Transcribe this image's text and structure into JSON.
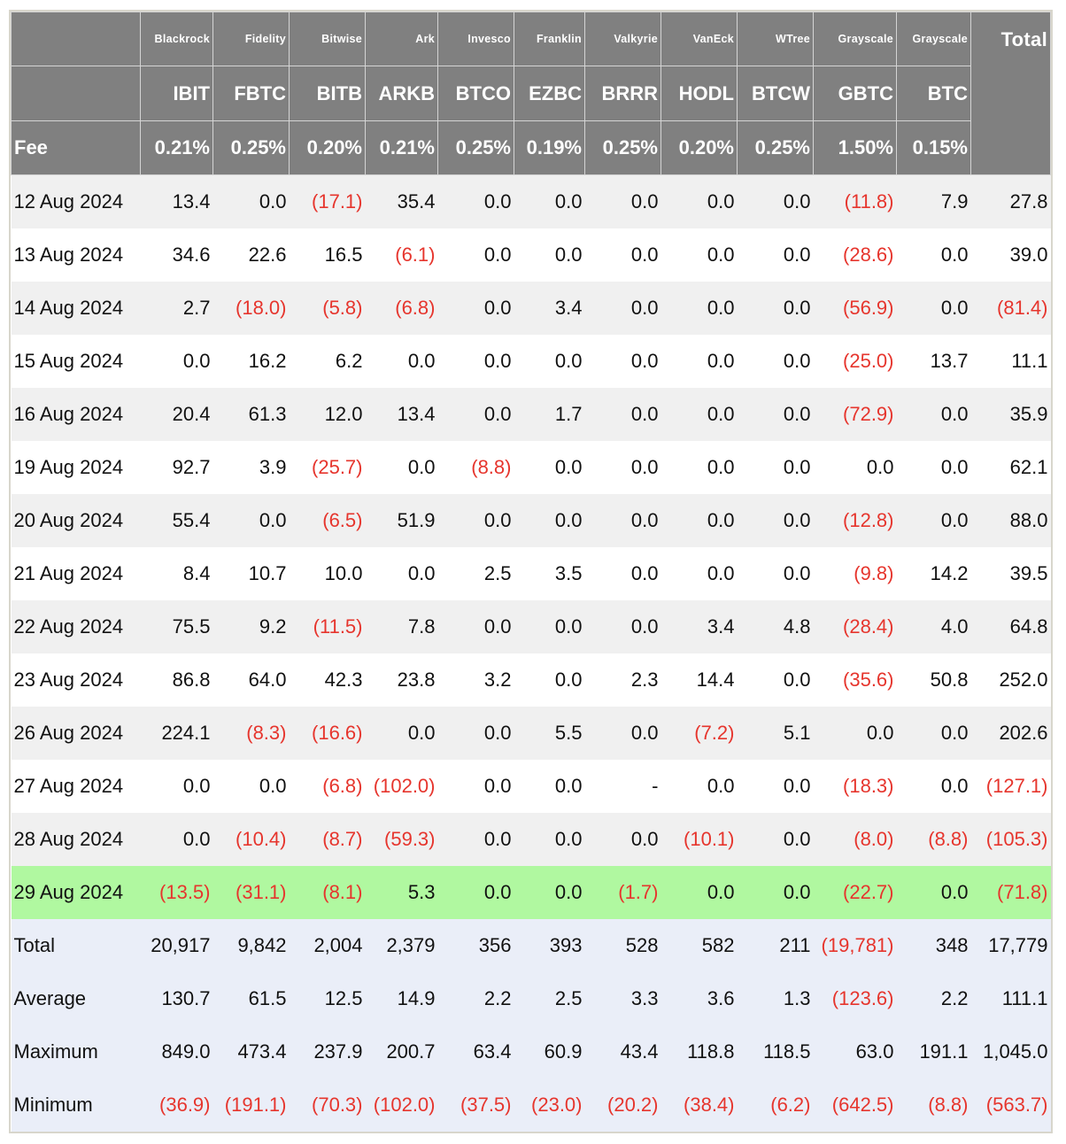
{
  "colors": {
    "header_bg": "#808080",
    "negative": "#e6352d",
    "highlight": "#b0f8a0",
    "summary_bg": "#eaeef8",
    "alt_row": "#f0f0f0"
  },
  "header": {
    "issuers": [
      "Blackrock",
      "Fidelity",
      "Bitwise",
      "Ark",
      "Invesco",
      "Franklin",
      "Valkyrie",
      "VanEck",
      "WTree",
      "Grayscale",
      "Grayscale"
    ],
    "total_label": "Total",
    "tickers": [
      "IBIT",
      "FBTC",
      "BITB",
      "ARKB",
      "BTCO",
      "EZBC",
      "BRRR",
      "HODL",
      "BTCW",
      "GBTC",
      "BTC"
    ],
    "fee_label": "Fee",
    "fees": [
      "0.21%",
      "0.25%",
      "0.20%",
      "0.21%",
      "0.25%",
      "0.19%",
      "0.25%",
      "0.20%",
      "0.25%",
      "1.50%",
      "0.15%"
    ]
  },
  "rows": [
    {
      "date": "12 Aug 2024",
      "values": [
        "13.4",
        "0.0",
        "(17.1)",
        "35.4",
        "0.0",
        "0.0",
        "0.0",
        "0.0",
        "0.0",
        "(11.8)",
        "7.9",
        "27.8"
      ]
    },
    {
      "date": "13 Aug 2024",
      "values": [
        "34.6",
        "22.6",
        "16.5",
        "(6.1)",
        "0.0",
        "0.0",
        "0.0",
        "0.0",
        "0.0",
        "(28.6)",
        "0.0",
        "39.0"
      ]
    },
    {
      "date": "14 Aug 2024",
      "values": [
        "2.7",
        "(18.0)",
        "(5.8)",
        "(6.8)",
        "0.0",
        "3.4",
        "0.0",
        "0.0",
        "0.0",
        "(56.9)",
        "0.0",
        "(81.4)"
      ]
    },
    {
      "date": "15 Aug 2024",
      "values": [
        "0.0",
        "16.2",
        "6.2",
        "0.0",
        "0.0",
        "0.0",
        "0.0",
        "0.0",
        "0.0",
        "(25.0)",
        "13.7",
        "11.1"
      ]
    },
    {
      "date": "16 Aug 2024",
      "values": [
        "20.4",
        "61.3",
        "12.0",
        "13.4",
        "0.0",
        "1.7",
        "0.0",
        "0.0",
        "0.0",
        "(72.9)",
        "0.0",
        "35.9"
      ]
    },
    {
      "date": "19 Aug 2024",
      "values": [
        "92.7",
        "3.9",
        "(25.7)",
        "0.0",
        "(8.8)",
        "0.0",
        "0.0",
        "0.0",
        "0.0",
        "0.0",
        "0.0",
        "62.1"
      ]
    },
    {
      "date": "20 Aug 2024",
      "values": [
        "55.4",
        "0.0",
        "(6.5)",
        "51.9",
        "0.0",
        "0.0",
        "0.0",
        "0.0",
        "0.0",
        "(12.8)",
        "0.0",
        "88.0"
      ]
    },
    {
      "date": "21 Aug 2024",
      "values": [
        "8.4",
        "10.7",
        "10.0",
        "0.0",
        "2.5",
        "3.5",
        "0.0",
        "0.0",
        "0.0",
        "(9.8)",
        "14.2",
        "39.5"
      ]
    },
    {
      "date": "22 Aug 2024",
      "values": [
        "75.5",
        "9.2",
        "(11.5)",
        "7.8",
        "0.0",
        "0.0",
        "0.0",
        "3.4",
        "4.8",
        "(28.4)",
        "4.0",
        "64.8"
      ]
    },
    {
      "date": "23 Aug 2024",
      "values": [
        "86.8",
        "64.0",
        "42.3",
        "23.8",
        "3.2",
        "0.0",
        "2.3",
        "14.4",
        "0.0",
        "(35.6)",
        "50.8",
        "252.0"
      ]
    },
    {
      "date": "26 Aug 2024",
      "values": [
        "224.1",
        "(8.3)",
        "(16.6)",
        "0.0",
        "0.0",
        "5.5",
        "0.0",
        "(7.2)",
        "5.1",
        "0.0",
        "0.0",
        "202.6"
      ]
    },
    {
      "date": "27 Aug 2024",
      "values": [
        "0.0",
        "0.0",
        "(6.8)",
        "(102.0)",
        "0.0",
        "0.0",
        "-",
        "0.0",
        "0.0",
        "(18.3)",
        "0.0",
        "(127.1)"
      ]
    },
    {
      "date": "28 Aug 2024",
      "values": [
        "0.0",
        "(10.4)",
        "(8.7)",
        "(59.3)",
        "0.0",
        "0.0",
        "0.0",
        "(10.1)",
        "0.0",
        "(8.0)",
        "(8.8)",
        "(105.3)"
      ]
    },
    {
      "date": "29 Aug 2024",
      "highlight": true,
      "values": [
        "(13.5)",
        "(31.1)",
        "(8.1)",
        "5.3",
        "0.0",
        "0.0",
        "(1.7)",
        "0.0",
        "0.0",
        "(22.7)",
        "0.0",
        "(71.8)"
      ]
    }
  ],
  "summary": [
    {
      "label": "Total",
      "values": [
        "20,917",
        "9,842",
        "2,004",
        "2,379",
        "356",
        "393",
        "528",
        "582",
        "211",
        "(19,781)",
        "348",
        "17,779"
      ]
    },
    {
      "label": "Average",
      "values": [
        "130.7",
        "61.5",
        "12.5",
        "14.9",
        "2.2",
        "2.5",
        "3.3",
        "3.6",
        "1.3",
        "(123.6)",
        "2.2",
        "111.1"
      ]
    },
    {
      "label": "Maximum",
      "values": [
        "849.0",
        "473.4",
        "237.9",
        "200.7",
        "63.4",
        "60.9",
        "43.4",
        "118.8",
        "118.5",
        "63.0",
        "191.1",
        "1,045.0"
      ]
    },
    {
      "label": "Minimum",
      "values": [
        "(36.9)",
        "(191.1)",
        "(70.3)",
        "(102.0)",
        "(37.5)",
        "(23.0)",
        "(20.2)",
        "(38.4)",
        "(6.2)",
        "(642.5)",
        "(8.8)",
        "(563.7)"
      ]
    }
  ]
}
